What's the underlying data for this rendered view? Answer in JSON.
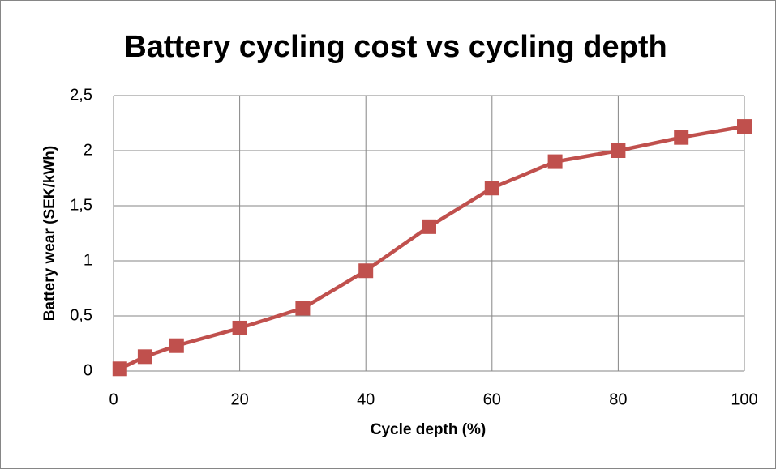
{
  "chart_data": {
    "type": "line",
    "title": "Battery cycling cost vs cycling depth",
    "x_label": "Cycle depth (%)",
    "y_label": "Battery wear (SEK/kWh)",
    "x": [
      1,
      5,
      10,
      20,
      30,
      40,
      50,
      60,
      70,
      80,
      90,
      100
    ],
    "values": [
      0.02,
      0.13,
      0.23,
      0.39,
      0.57,
      0.91,
      1.31,
      1.66,
      1.9,
      2.0,
      2.12,
      2.22
    ],
    "color": "#c0504d",
    "xlim": [
      0,
      100
    ],
    "xticks": [
      0,
      20,
      40,
      60,
      80,
      100
    ],
    "ylim": [
      0,
      2.5
    ],
    "yticks": [
      0,
      {
        "value": 0.5,
        "label": "0,5"
      },
      1,
      {
        "value": 1.5,
        "label": "1,5"
      },
      2,
      {
        "value": 2.5,
        "label": "2,5"
      }
    ],
    "grid": true
  }
}
